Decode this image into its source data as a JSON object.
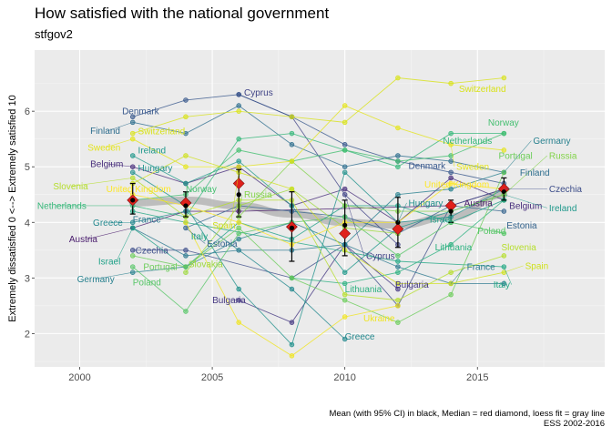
{
  "chart_data": {
    "type": "line",
    "title": "How satisfied with the national government",
    "subtitle": "stfgov2",
    "xlabel": "",
    "ylabel": "Extremely dissatisfied 0 <--> Extremely satisfied 10",
    "xlim": [
      1998.3,
      2019.8
    ],
    "ylim": [
      1.4,
      7.1
    ],
    "x_ticks": [
      2000,
      2005,
      2010,
      2015
    ],
    "y_ticks": [
      2,
      3,
      4,
      5,
      6
    ],
    "caption": [
      "Mean (with 95% CI) in black, Median = red diamond, loess fit = gray line",
      "ESS 2002-2016"
    ],
    "series": [
      {
        "name": "Austria",
        "color": "#481a6c",
        "x": [
          2002,
          2004,
          2006,
          2014,
          2016
        ],
        "y": [
          3.9,
          4.2,
          4.2,
          4.3,
          4.6
        ]
      },
      {
        "name": "Belgium",
        "color": "#472d7b",
        "x": [
          2002,
          2004,
          2006,
          2008,
          2010,
          2012,
          2014,
          2016
        ],
        "y": [
          5.0,
          4.7,
          5.0,
          4.3,
          4.6,
          4.0,
          4.8,
          4.4
        ]
      },
      {
        "name": "Bulgaria",
        "color": "#453882",
        "x": [
          2006,
          2008,
          2010,
          2012
        ],
        "y": [
          2.6,
          2.2,
          3.6,
          2.8
        ]
      },
      {
        "name": "Cyprus",
        "color": "#414487",
        "x": [
          2006,
          2008,
          2010,
          2012
        ],
        "y": [
          6.3,
          5.9,
          4.5,
          3.6
        ]
      },
      {
        "name": "Czechia",
        "color": "#3d4e8a",
        "x": [
          2002,
          2004,
          2008,
          2010,
          2012,
          2014,
          2016
        ],
        "y": [
          3.5,
          3.5,
          3.0,
          3.6,
          2.5,
          4.3,
          4.6
        ]
      },
      {
        "name": "Denmark",
        "color": "#38588c",
        "x": [
          2002,
          2004,
          2006,
          2008,
          2010,
          2012,
          2014,
          2016
        ],
        "y": [
          5.9,
          6.2,
          6.3,
          5.9,
          5.4,
          5.1,
          4.9,
          4.7
        ]
      },
      {
        "name": "Estonia",
        "color": "#33638d",
        "x": [
          2004,
          2006,
          2008,
          2010,
          2012,
          2014,
          2016
        ],
        "y": [
          3.9,
          4.3,
          4.2,
          4.1,
          3.8,
          4.3,
          4.2
        ]
      },
      {
        "name": "Finland",
        "color": "#2e6e8e",
        "x": [
          2002,
          2004,
          2006,
          2008,
          2010,
          2012,
          2014,
          2016
        ],
        "y": [
          5.8,
          5.6,
          6.1,
          5.4,
          5.0,
          5.2,
          5.1,
          4.9
        ]
      },
      {
        "name": "France",
        "color": "#2a788e",
        "x": [
          2002,
          2004,
          2006,
          2008,
          2010,
          2012,
          2014,
          2016
        ],
        "y": [
          3.9,
          3.4,
          3.5,
          3.5,
          3.6,
          3.2,
          2.9,
          2.9
        ]
      },
      {
        "name": "Germany",
        "color": "#27808e",
        "x": [
          2002,
          2004,
          2006,
          2008,
          2010,
          2012,
          2014,
          2016
        ],
        "y": [
          3.1,
          3.2,
          3.7,
          4.0,
          3.6,
          4.5,
          4.6,
          4.9
        ]
      },
      {
        "name": "Greece",
        "color": "#23888e",
        "x": [
          2002,
          2004,
          2008,
          2010
        ],
        "y": [
          4.0,
          4.2,
          2.8,
          1.9
        ]
      },
      {
        "name": "Hungary",
        "color": "#21918c",
        "x": [
          2002,
          2004,
          2006,
          2008,
          2010,
          2012,
          2014,
          2016
        ],
        "y": [
          4.9,
          4.3,
          2.8,
          1.8,
          4.9,
          4.0,
          4.1,
          4.6
        ]
      },
      {
        "name": "Ireland",
        "color": "#1f988b",
        "x": [
          2002,
          2004,
          2006,
          2008,
          2010,
          2012,
          2014,
          2016
        ],
        "y": [
          5.2,
          4.7,
          5.1,
          4.3,
          3.1,
          3.9,
          4.2,
          4.5
        ]
      },
      {
        "name": "Israel",
        "color": "#1fa188",
        "x": [
          2002,
          2004,
          2006,
          2008,
          2010,
          2012,
          2014,
          2016
        ],
        "y": [
          3.9,
          3.2,
          4.0,
          3.7,
          4.3,
          4.3,
          4.0,
          4.4
        ]
      },
      {
        "name": "Italy",
        "color": "#22a884",
        "x": [
          2002,
          2004,
          2012,
          2016
        ],
        "y": [
          4.2,
          4.0,
          3.3,
          3.2
        ]
      },
      {
        "name": "Lithuania",
        "color": "#2ab07f",
        "x": [
          2008,
          2010,
          2012,
          2014,
          2016
        ],
        "y": [
          3.0,
          2.9,
          3.1,
          3.6,
          4.4
        ]
      },
      {
        "name": "Netherlands",
        "color": "#35b779",
        "x": [
          2002,
          2004,
          2006,
          2008,
          2010,
          2012,
          2014,
          2016
        ],
        "y": [
          4.3,
          4.1,
          5.5,
          5.6,
          5.3,
          5.0,
          5.6,
          5.6
        ]
      },
      {
        "name": "Norway",
        "color": "#44bf70",
        "x": [
          2002,
          2004,
          2006,
          2008,
          2010,
          2012,
          2014,
          2016
        ],
        "y": [
          4.4,
          4.5,
          5.3,
          5.1,
          5.3,
          5.1,
          5.2,
          5.6
        ]
      },
      {
        "name": "Poland",
        "color": "#56c667",
        "x": [
          2002,
          2004,
          2006,
          2008,
          2010,
          2012,
          2014,
          2016
        ],
        "y": [
          3.2,
          2.4,
          3.8,
          4.0,
          4.1,
          3.4,
          4.0,
          3.8
        ]
      },
      {
        "name": "Portugal",
        "color": "#6ccd5a",
        "x": [
          2002,
          2004,
          2006,
          2008,
          2010,
          2012,
          2014,
          2016
        ],
        "y": [
          3.4,
          3.2,
          3.9,
          3.0,
          2.6,
          2.2,
          2.7,
          4.9
        ]
      },
      {
        "name": "Russia",
        "color": "#83d34b",
        "x": [
          2006,
          2008,
          2010,
          2012,
          2014,
          2016
        ],
        "y": [
          4.1,
          5.1,
          4.3,
          4.2,
          4.2,
          4.5
        ]
      },
      {
        "name": "Slovakia",
        "color": "#9dd93b",
        "x": [
          2004,
          2006,
          2008,
          2010,
          2012
        ],
        "y": [
          3.1,
          4.3,
          4.6,
          3.9,
          3.8
        ]
      },
      {
        "name": "Slovenia",
        "color": "#b5de2b",
        "x": [
          2002,
          2004,
          2006,
          2008,
          2010,
          2012,
          2014,
          2016
        ],
        "y": [
          4.8,
          4.1,
          4.4,
          4.4,
          2.7,
          2.6,
          3.1,
          3.4
        ]
      },
      {
        "name": "Spain",
        "color": "#cfe11c",
        "x": [
          2002,
          2004,
          2006,
          2008,
          2010,
          2012,
          2014,
          2016
        ],
        "y": [
          4.7,
          5.2,
          4.9,
          4.6,
          3.5,
          2.9,
          2.9,
          3.1
        ]
      },
      {
        "name": "Sweden",
        "color": "#e4e419",
        "x": [
          2002,
          2004,
          2006,
          2008,
          2010,
          2012,
          2014,
          2016
        ],
        "y": [
          5.5,
          5.0,
          5.0,
          5.1,
          6.1,
          5.7,
          5.4,
          5.3
        ]
      },
      {
        "name": "Switzerland",
        "color": "#d8e219",
        "x": [
          2002,
          2004,
          2006,
          2008,
          2010,
          2012,
          2014,
          2016
        ],
        "y": [
          5.6,
          5.9,
          6.0,
          5.9,
          5.8,
          6.6,
          6.5,
          6.6
        ]
      },
      {
        "name": "Ukraine",
        "color": "#f0e51f",
        "x": [
          2004,
          2006,
          2008,
          2010,
          2012
        ],
        "y": [
          4.0,
          2.2,
          1.6,
          2.3,
          2.5
        ]
      },
      {
        "name": "United Kingdom",
        "color": "#fde725",
        "x": [
          2002,
          2004,
          2006,
          2008,
          2010,
          2012,
          2014,
          2016
        ],
        "y": [
          4.5,
          4.3,
          4.0,
          3.6,
          4.0,
          4.0,
          4.7,
          4.6
        ]
      }
    ],
    "summary": {
      "years": [
        2002,
        2004,
        2006,
        2008,
        2010,
        2012,
        2014,
        2016
      ],
      "mean": [
        4.4,
        4.3,
        4.5,
        3.9,
        3.95,
        4.0,
        4.2,
        4.55
      ],
      "ci_low": [
        4.15,
        4.1,
        4.1,
        3.3,
        3.4,
        3.55,
        4.0,
        4.4
      ],
      "ci_high": [
        4.7,
        4.55,
        4.95,
        4.55,
        4.4,
        4.45,
        4.4,
        4.8
      ],
      "median": [
        4.4,
        4.35,
        4.7,
        3.92,
        3.8,
        3.88,
        4.3,
        4.6
      ],
      "loess": [
        4.35,
        4.4,
        4.3,
        4.15,
        4.0,
        3.95,
        4.1,
        4.5
      ]
    },
    "labels": [
      {
        "text": "Cyprus",
        "series": "Cyprus",
        "x": 2006.2,
        "y": 6.34
      },
      {
        "text": "Switzerland",
        "series": "Switzerland",
        "x": 2014.3,
        "y": 6.4
      },
      {
        "text": "Denmark",
        "series": "Denmark",
        "x": 2001.6,
        "y": 6.0
      },
      {
        "text": "Finland",
        "series": "Finland",
        "x": 2000.4,
        "y": 5.65
      },
      {
        "text": "Switzerland",
        "series": "Switzerland",
        "x": 2002.2,
        "y": 5.64
      },
      {
        "text": "Norway",
        "series": "Norway",
        "x": 2015.4,
        "y": 5.8
      },
      {
        "text": "Germany",
        "series": "Germany",
        "x": 2017.1,
        "y": 5.47
      },
      {
        "text": "Netherlands",
        "series": "Netherlands",
        "x": 2013.7,
        "y": 5.47
      },
      {
        "text": "Sweden",
        "series": "Sweden",
        "x": 2000.3,
        "y": 5.35
      },
      {
        "text": "Ireland",
        "series": "Ireland",
        "x": 2002.2,
        "y": 5.3
      },
      {
        "text": "Portugal",
        "series": "Portugal",
        "x": 2015.8,
        "y": 5.2
      },
      {
        "text": "Russia",
        "series": "Russia",
        "x": 2017.7,
        "y": 5.2
      },
      {
        "text": "Belgium",
        "series": "Belgium",
        "x": 2000.4,
        "y": 5.05
      },
      {
        "text": "Denmark",
        "series": "Denmark",
        "x": 2012.4,
        "y": 5.02
      },
      {
        "text": "Sweden",
        "series": "Sweden",
        "x": 2014.2,
        "y": 5.0
      },
      {
        "text": "Hungary",
        "series": "Hungary",
        "x": 2002.2,
        "y": 4.98
      },
      {
        "text": "Finland",
        "series": "Finland",
        "x": 2016.6,
        "y": 4.9
      },
      {
        "text": "Slovenia",
        "series": "Slovenia",
        "x": 1999.0,
        "y": 4.65
      },
      {
        "text": "United Kingdom",
        "series": "United Kingdom",
        "x": 2001.0,
        "y": 4.6
      },
      {
        "text": "Norway",
        "series": "Norway",
        "x": 2004.0,
        "y": 4.6
      },
      {
        "text": "United Kingdom",
        "series": "United Kingdom",
        "x": 2013.0,
        "y": 4.68
      },
      {
        "text": "Czechia",
        "series": "Czechia",
        "x": 2017.7,
        "y": 4.6
      },
      {
        "text": "Russia",
        "series": "Russia",
        "x": 2006.2,
        "y": 4.5
      },
      {
        "text": "Hungary",
        "series": "Hungary",
        "x": 2012.4,
        "y": 4.35
      },
      {
        "text": "Austria",
        "series": "Austria",
        "x": 2014.5,
        "y": 4.35
      },
      {
        "text": "Netherlands",
        "series": "Netherlands",
        "x": 1998.4,
        "y": 4.3
      },
      {
        "text": "Belgium",
        "series": "Belgium",
        "x": 2016.2,
        "y": 4.3
      },
      {
        "text": "Ireland",
        "series": "Ireland",
        "x": 2017.7,
        "y": 4.26
      },
      {
        "text": "France",
        "series": "France",
        "x": 2002.0,
        "y": 4.05
      },
      {
        "text": "Greece",
        "series": "Greece",
        "x": 2000.5,
        "y": 4.0
      },
      {
        "text": "Israel",
        "series": "Israel",
        "x": 2013.2,
        "y": 4.05
      },
      {
        "text": "Spain",
        "series": "Spain",
        "x": 2005.0,
        "y": 3.95
      },
      {
        "text": "Estonia",
        "series": "Estonia",
        "x": 2016.1,
        "y": 3.95
      },
      {
        "text": "Italy",
        "series": "Italy",
        "x": 2004.2,
        "y": 3.75
      },
      {
        "text": "Austria",
        "series": "Austria",
        "x": 1999.6,
        "y": 3.7
      },
      {
        "text": "Poland",
        "series": "Poland",
        "x": 2015.0,
        "y": 3.85
      },
      {
        "text": "Estonia",
        "series": "Estonia",
        "x": 2004.8,
        "y": 3.62
      },
      {
        "text": "Lithuania",
        "series": "Lithuania",
        "x": 2013.4,
        "y": 3.55
      },
      {
        "text": "Czechia",
        "series": "Czechia",
        "x": 2002.1,
        "y": 3.5
      },
      {
        "text": "Slovenia",
        "series": "Slovenia",
        "x": 2015.9,
        "y": 3.55
      },
      {
        "text": "Cyprus",
        "series": "Cyprus",
        "x": 2010.8,
        "y": 3.4
      },
      {
        "text": "Israel",
        "series": "Israel",
        "x": 2000.7,
        "y": 3.3
      },
      {
        "text": "Slovakia",
        "series": "Slovakia",
        "x": 2004.1,
        "y": 3.25
      },
      {
        "text": "Portugal",
        "series": "Portugal",
        "x": 2002.4,
        "y": 3.2
      },
      {
        "text": "France",
        "series": "France",
        "x": 2014.6,
        "y": 3.2
      },
      {
        "text": "Spain",
        "series": "Spain",
        "x": 2016.8,
        "y": 3.22
      },
      {
        "text": "Germany",
        "series": "Germany",
        "x": 1999.9,
        "y": 2.98
      },
      {
        "text": "Poland",
        "series": "Poland",
        "x": 2002.0,
        "y": 2.92
      },
      {
        "text": "Bulgaria",
        "series": "Bulgaria",
        "x": 2011.9,
        "y": 2.88
      },
      {
        "text": "Italy",
        "series": "Italy",
        "x": 2015.6,
        "y": 2.88
      },
      {
        "text": "Lithuania",
        "series": "Lithuania",
        "x": 2010.0,
        "y": 2.8
      },
      {
        "text": "Bulgaria",
        "series": "Bulgaria",
        "x": 2005.0,
        "y": 2.6
      },
      {
        "text": "Ukraine",
        "series": "Ukraine",
        "x": 2010.7,
        "y": 2.28
      },
      {
        "text": "Greece",
        "series": "Greece",
        "x": 2010.0,
        "y": 1.95
      }
    ]
  }
}
